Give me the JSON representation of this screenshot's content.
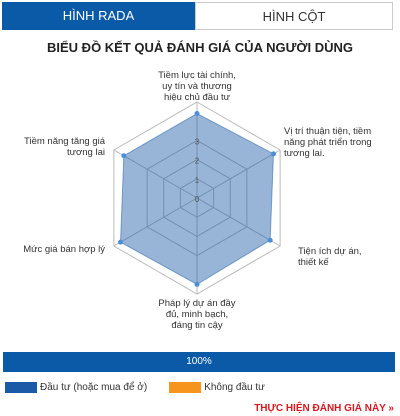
{
  "tabs": [
    "HÌNH RADA",
    "HÌNH CỘT"
  ],
  "chart_data": {
    "type": "radar",
    "title": "BIỂU ĐỒ KẾT QUẢ ĐÁNH GIÁ CỦA NGƯỜI DÙNG",
    "categories": [
      "Tiềm lực tài chính, uy tín và thương hiệu chủ đầu tư",
      "Vị trí thuận tiện, tiềm năng phát triển trong tương lai.",
      "Tiện ích dự án, thiết kế",
      "Pháp lý dự án đầy đủ, minh bạch, đáng tin cậy",
      "Mức giá bán hợp lý",
      "Tiềm năng tăng giá tương lai"
    ],
    "series": [
      {
        "name": "Đầu tư (hoặc mua để ở)",
        "color": "#1b5aa6",
        "values": [
          4.4,
          4.6,
          4.4,
          4.5,
          4.6,
          4.4
        ]
      },
      {
        "name": "Không đầu tư",
        "color": "#f7941d",
        "values": [
          null,
          null,
          null,
          null,
          null,
          null
        ]
      }
    ],
    "rlim": [
      0,
      5
    ],
    "rticks": [
      0,
      1,
      2,
      3
    ]
  },
  "progress": {
    "value": 100,
    "label": "100%"
  },
  "link": "THỰC HIỆN ĐÁNH GIÁ NÀY »"
}
